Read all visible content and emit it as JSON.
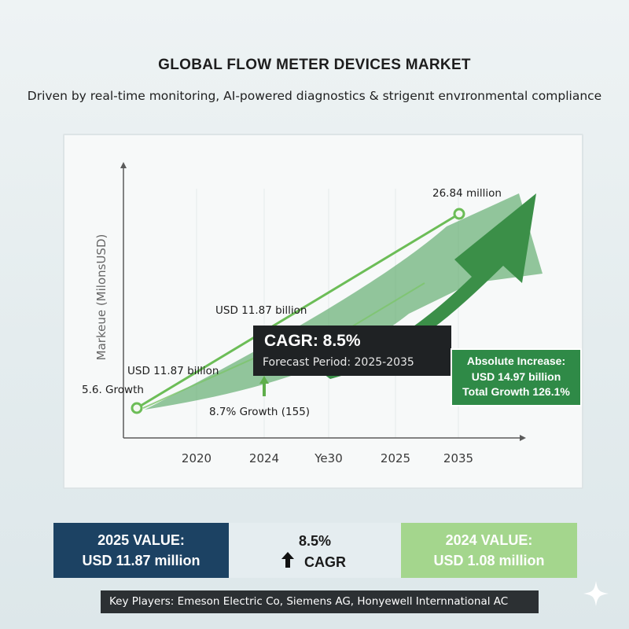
{
  "header": {
    "title": "GLOBAL FLOW METER DEVICES MARKET",
    "subtitle": "Driven by real-time monitoring, AI-powered diagnostics & strigenɪt envɪronmental compliance"
  },
  "chart_data": {
    "type": "line",
    "ylabel": "Markeue (MilonsUSD)",
    "x_tick_labels": [
      "2020",
      "2024",
      "Ye30",
      "2025",
      "2035"
    ],
    "series": [
      {
        "x": [
          "2020",
          "2035"
        ],
        "values": [
          5.6,
          26.84
        ],
        "color": "#6cbd57"
      }
    ],
    "annotations": {
      "end_value": "26.84 million",
      "start_growth": "5.6. Growth",
      "label_mid_left": "USD 11.87 billion",
      "label_mid_upper": "USD 11.87 billion",
      "growth_note": "8.7% Growth (155)"
    },
    "grid": "vertical",
    "colors": {
      "line": "#6cbd57",
      "band": "#3e9a4f",
      "arrow": "#3b8f48"
    }
  },
  "cagr_box": {
    "headline": "CAGR: 8.5%",
    "forecast": "Forecast Period: 2025-2035"
  },
  "absolute_box": {
    "line1": "Absolute Increase:",
    "line2": "USD 14.97 billion",
    "line3": "Total Growth 126.1%"
  },
  "cards": {
    "left": {
      "label": "2025 VALUE:",
      "value": "USD 11.87 million"
    },
    "mid": {
      "value": "8.5%",
      "label": "CAGR"
    },
    "right": {
      "label": "2024 VALUE:",
      "value": "USD 1.08 million"
    }
  },
  "footer": {
    "players": "Key Players: Emeson Electric Co, Siemens AG,    Honyewell Internnational AC"
  }
}
